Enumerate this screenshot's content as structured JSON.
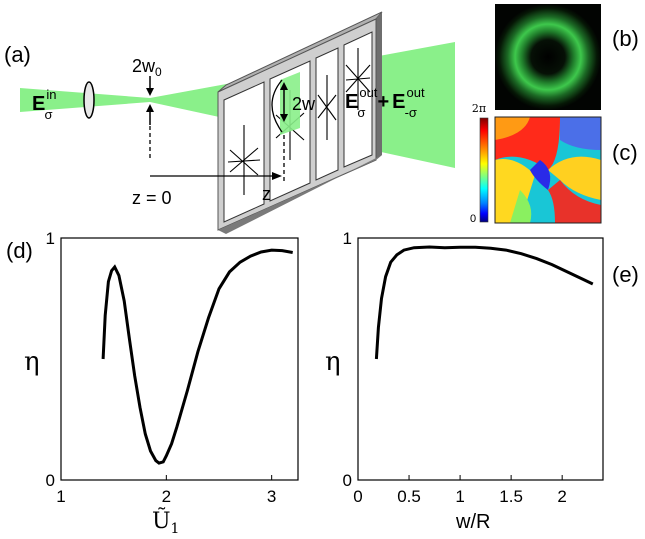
{
  "labels": {
    "a": "(a)",
    "b": "(b)",
    "c": "(c)",
    "d": "(d)",
    "e": "(e)"
  },
  "schematic": {
    "waist_label": "2w",
    "waist_sub": "0",
    "beam_label": "2w",
    "z0_label": "z = 0",
    "z_label": "z",
    "e_in_base": "E",
    "e_in_sup": "in",
    "e_in_sub": "σ",
    "e_out1_base": "E",
    "e_out1_sup": "out",
    "e_out1_sub": "σ",
    "plus": "+",
    "e_out2_base": "E",
    "e_out2_sup": "out",
    "e_out2_sub": "-σ"
  },
  "phase_colorbar": {
    "top_label": "2π",
    "bottom_label": "0",
    "colors": [
      "#7f0000",
      "#ff0000",
      "#ff8c00",
      "#ffff00",
      "#80ff80",
      "#00ffff",
      "#0080ff",
      "#0000ff",
      "#00007f"
    ]
  },
  "chart_data": [
    {
      "type": "line",
      "panel": "d",
      "xlabel": "Ũ",
      "xlabel_sub": "1",
      "ylabel": "η",
      "xlim": [
        1,
        3.25
      ],
      "ylim": [
        0,
        1
      ],
      "xticks": [
        "1",
        "2",
        "3"
      ],
      "yticks": [
        "0",
        "1"
      ],
      "x": [
        1.4,
        1.42,
        1.45,
        1.48,
        1.51,
        1.55,
        1.6,
        1.65,
        1.7,
        1.75,
        1.8,
        1.85,
        1.9,
        1.93,
        1.97,
        2.0,
        2.05,
        2.1,
        2.2,
        2.3,
        2.4,
        2.5,
        2.6,
        2.7,
        2.8,
        2.9,
        3.0,
        3.1,
        3.2
      ],
      "y": [
        0.5,
        0.68,
        0.82,
        0.865,
        0.88,
        0.845,
        0.74,
        0.58,
        0.43,
        0.3,
        0.19,
        0.12,
        0.08,
        0.07,
        0.075,
        0.1,
        0.15,
        0.22,
        0.37,
        0.53,
        0.67,
        0.79,
        0.86,
        0.9,
        0.925,
        0.942,
        0.95,
        0.948,
        0.94
      ]
    },
    {
      "type": "line",
      "panel": "e",
      "xlabel": "w/R",
      "ylabel": "η",
      "xlim": [
        0,
        2.4
      ],
      "ylim": [
        0,
        1
      ],
      "xticks": [
        "0",
        "0.5",
        "1",
        "1.5",
        "2"
      ],
      "yticks": [
        "0",
        "1"
      ],
      "x": [
        0.18,
        0.2,
        0.23,
        0.27,
        0.32,
        0.38,
        0.45,
        0.55,
        0.7,
        0.85,
        1.0,
        1.15,
        1.3,
        1.45,
        1.6,
        1.75,
        1.9,
        2.05,
        2.2,
        2.3
      ],
      "y": [
        0.5,
        0.63,
        0.75,
        0.84,
        0.9,
        0.93,
        0.95,
        0.96,
        0.963,
        0.96,
        0.962,
        0.962,
        0.958,
        0.95,
        0.935,
        0.915,
        0.89,
        0.86,
        0.83,
        0.81
      ]
    }
  ]
}
